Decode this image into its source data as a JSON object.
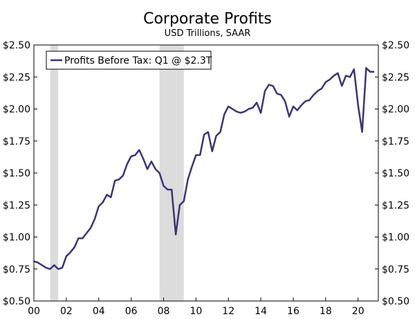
{
  "chart_data": {
    "type": "line",
    "title": "Corporate Profits",
    "subtitle": "USD Trillions, SAAR",
    "xlabel": "",
    "ylabel": "",
    "ylim": [
      0.5,
      2.5
    ],
    "xlim": [
      2000,
      2021.25
    ],
    "yticks": [
      "$0.50",
      "$0.75",
      "$1.00",
      "$1.25",
      "$1.50",
      "$1.75",
      "$2.00",
      "$2.25",
      "$2.50"
    ],
    "ytick_values": [
      0.5,
      0.75,
      1.0,
      1.25,
      1.5,
      1.75,
      2.0,
      2.25,
      2.5
    ],
    "xticks": [
      "00",
      "02",
      "04",
      "06",
      "08",
      "10",
      "12",
      "14",
      "16",
      "18",
      "20"
    ],
    "xtick_values": [
      2000,
      2002,
      2004,
      2006,
      2008,
      2010,
      2012,
      2014,
      2016,
      2018,
      2020
    ],
    "recessions": [
      [
        2001.0,
        2001.5
      ],
      [
        2007.75,
        2009.25
      ]
    ],
    "line_color": "#3b3475",
    "recession_color": "#dcdcdc",
    "legend_position": "top-left",
    "series": [
      {
        "name": "Profits Before Tax: Q1 @ $2.3T",
        "x": [
          2000.0,
          2000.25,
          2000.5,
          2000.75,
          2001.0,
          2001.25,
          2001.5,
          2001.75,
          2002.0,
          2002.25,
          2002.5,
          2002.75,
          2003.0,
          2003.25,
          2003.5,
          2003.75,
          2004.0,
          2004.25,
          2004.5,
          2004.75,
          2005.0,
          2005.25,
          2005.5,
          2005.75,
          2006.0,
          2006.25,
          2006.5,
          2006.75,
          2007.0,
          2007.25,
          2007.5,
          2007.75,
          2008.0,
          2008.25,
          2008.5,
          2008.75,
          2009.0,
          2009.25,
          2009.5,
          2009.75,
          2010.0,
          2010.25,
          2010.5,
          2010.75,
          2011.0,
          2011.25,
          2011.5,
          2011.75,
          2012.0,
          2012.25,
          2012.5,
          2012.75,
          2013.0,
          2013.25,
          2013.5,
          2013.75,
          2014.0,
          2014.25,
          2014.5,
          2014.75,
          2015.0,
          2015.25,
          2015.5,
          2015.75,
          2016.0,
          2016.25,
          2016.5,
          2016.75,
          2017.0,
          2017.25,
          2017.5,
          2017.75,
          2018.0,
          2018.25,
          2018.5,
          2018.75,
          2019.0,
          2019.25,
          2019.5,
          2019.75,
          2020.0,
          2020.25,
          2020.5,
          2020.75,
          2021.0
        ],
        "values": [
          0.81,
          0.8,
          0.78,
          0.76,
          0.75,
          0.78,
          0.75,
          0.76,
          0.85,
          0.88,
          0.92,
          0.99,
          0.99,
          1.03,
          1.07,
          1.14,
          1.24,
          1.27,
          1.33,
          1.31,
          1.44,
          1.45,
          1.48,
          1.57,
          1.63,
          1.64,
          1.68,
          1.61,
          1.53,
          1.59,
          1.53,
          1.5,
          1.4,
          1.37,
          1.37,
          1.02,
          1.25,
          1.28,
          1.45,
          1.55,
          1.64,
          1.64,
          1.8,
          1.82,
          1.67,
          1.79,
          1.82,
          1.96,
          2.02,
          2.0,
          1.98,
          1.97,
          1.98,
          2.0,
          2.01,
          2.05,
          1.97,
          2.14,
          2.19,
          2.18,
          2.12,
          2.11,
          2.06,
          1.94,
          2.02,
          1.99,
          2.03,
          2.06,
          2.07,
          2.11,
          2.14,
          2.16,
          2.21,
          2.23,
          2.26,
          2.28,
          2.18,
          2.26,
          2.25,
          2.31,
          2.03,
          1.82,
          2.32,
          2.29,
          2.29
        ]
      }
    ]
  }
}
